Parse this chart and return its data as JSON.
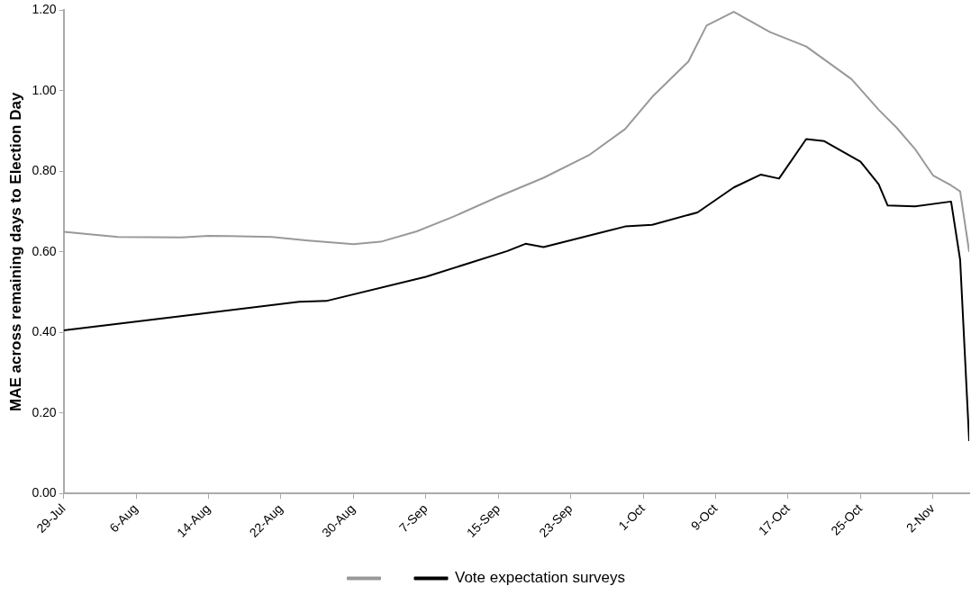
{
  "chart_data": {
    "type": "line",
    "ylabel": "MAE across remaining days to Election Day",
    "xlim": [
      "--07-29",
      "--11-06"
    ],
    "xticks": [
      {
        "value": "--07-29",
        "label": "29-Jul"
      },
      {
        "value": "--08-06",
        "label": "6-Aug"
      },
      {
        "value": "--08-14",
        "label": "14-Aug"
      },
      {
        "value": "--08-22",
        "label": "22-Aug"
      },
      {
        "value": "--08-30",
        "label": "30-Aug"
      },
      {
        "value": "--09-07",
        "label": "7-Sep"
      },
      {
        "value": "--09-15",
        "label": "15-Sep"
      },
      {
        "value": "--09-23",
        "label": "23-Sep"
      },
      {
        "value": "--10-01",
        "label": "1-Oct"
      },
      {
        "value": "--10-09",
        "label": "9-Oct"
      },
      {
        "value": "--10-17",
        "label": "17-Oct"
      },
      {
        "value": "--10-25",
        "label": "25-Oct"
      },
      {
        "value": "--11-02",
        "label": "2-Nov"
      }
    ],
    "ylim": [
      0,
      1.2
    ],
    "yticks": [
      {
        "value": 0,
        "label": "0.00"
      },
      {
        "value": 0.2,
        "label": "0.20"
      },
      {
        "value": 0.4,
        "label": "0.40"
      },
      {
        "value": 0.6,
        "label": "0.60"
      },
      {
        "value": 0.8,
        "label": "0.80"
      },
      {
        "value": 1.0,
        "label": "1.00"
      },
      {
        "value": 1.2,
        "label": "1.20"
      }
    ],
    "grid": false,
    "legend": "bottom",
    "marker": "none",
    "line_style": "solid",
    "series": [
      {
        "color": "#999999",
        "x": [
          "--07-29",
          "--08-04",
          "--08-11",
          "--08-14",
          "--08-21",
          "--08-25",
          "--08-30",
          "--09-02",
          "--09-06",
          "--09-10",
          "--09-15",
          "--09-20",
          "--09-25",
          "--09-29",
          "--10-02",
          "--10-06",
          "--10-08",
          "--10-11",
          "--10-15",
          "--10-19",
          "--10-24",
          "--10-27",
          "--10-29",
          "--10-31",
          "--11-02",
          "--11-04",
          "--11-05",
          "--11-06"
        ],
        "values": [
          0.65,
          0.637,
          0.636,
          0.64,
          0.637,
          0.628,
          0.619,
          0.625,
          0.651,
          0.687,
          0.737,
          0.784,
          0.84,
          0.905,
          0.985,
          1.073,
          1.162,
          1.196,
          1.146,
          1.11,
          1.029,
          0.953,
          0.908,
          0.856,
          0.79,
          0.765,
          0.75,
          0.6
        ]
      },
      {
        "name": "Vote expectation surveys",
        "color": "#000000",
        "x": [
          "--07-29",
          "--08-13",
          "--08-24",
          "--08-27",
          "--09-07",
          "--09-16",
          "--09-18",
          "--09-20",
          "--09-29",
          "--10-02",
          "--10-07",
          "--10-11",
          "--10-14",
          "--10-16",
          "--10-19",
          "--10-21",
          "--10-25",
          "--10-27",
          "--10-28",
          "--10-31",
          "--11-04",
          "--11-05",
          "--11-06"
        ],
        "values": [
          0.405,
          0.446,
          0.476,
          0.478,
          0.538,
          0.602,
          0.62,
          0.612,
          0.663,
          0.667,
          0.698,
          0.76,
          0.792,
          0.782,
          0.88,
          0.875,
          0.824,
          0.768,
          0.715,
          0.713,
          0.725,
          0.58,
          0.13
        ]
      }
    ]
  }
}
